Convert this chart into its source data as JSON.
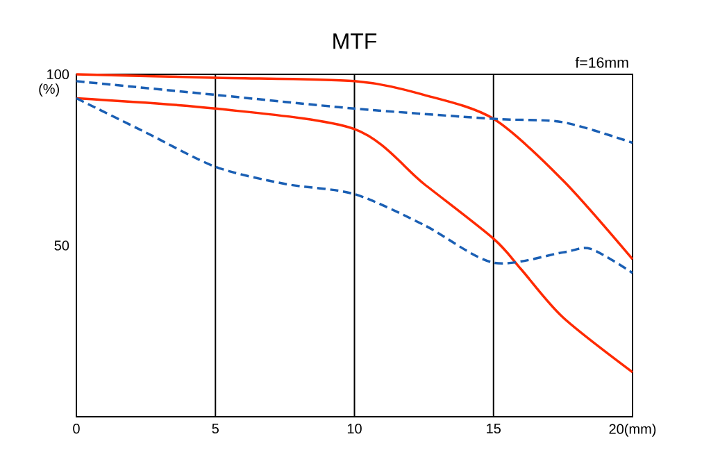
{
  "chart_data": {
    "type": "line",
    "title": "MTF",
    "ylabel": "(%)",
    "annotations": [
      "f=16mm"
    ],
    "series": [
      {
        "color": "#ff2a00",
        "line_style": "solid",
        "x": [
          0,
          5,
          10,
          12.5,
          15,
          17.5,
          20
        ],
        "values": [
          100,
          99,
          98,
          94,
          87,
          69,
          46
        ]
      },
      {
        "color": "#ff2a00",
        "line_style": "solid",
        "x": [
          0,
          5,
          10,
          12.5,
          15,
          16,
          17.5,
          20
        ],
        "values": [
          93,
          90,
          84,
          68,
          52,
          43,
          29,
          13
        ]
      },
      {
        "color": "#1a5fb4",
        "line_style": "dashed",
        "x": [
          0,
          5,
          10,
          15,
          17.5,
          20
        ],
        "values": [
          98,
          94,
          90,
          87,
          86,
          80
        ]
      },
      {
        "color": "#1a5fb4",
        "line_style": "dashed",
        "x": [
          0,
          2.5,
          5,
          7.5,
          10,
          12.5,
          15,
          17.5,
          18.5,
          20
        ],
        "values": [
          93,
          83,
          73,
          68,
          65,
          56,
          45,
          48,
          49,
          42
        ]
      }
    ],
    "xlim": [
      0,
      20
    ],
    "ylim": [
      0,
      100
    ],
    "xticks": [
      0,
      5,
      10,
      15,
      {
        "value": 20,
        "label": "20(mm)"
      }
    ],
    "yticks": [
      50,
      100
    ],
    "grid": "x",
    "marker": "none"
  }
}
